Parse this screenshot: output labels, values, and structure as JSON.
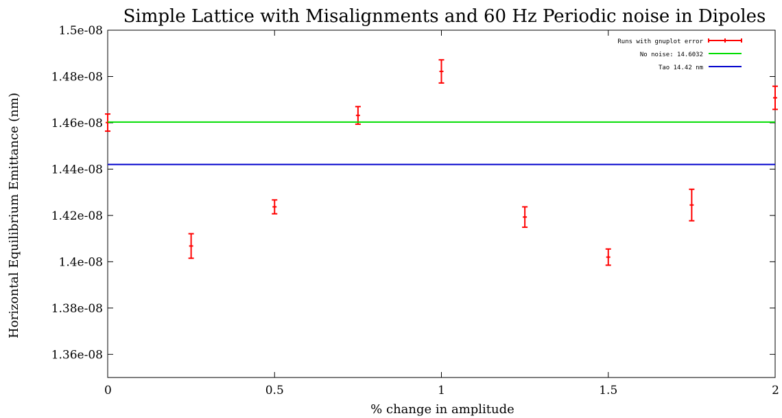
{
  "chart_data": {
    "type": "scatter",
    "title": "Simple Lattice with Misalignments and 60 Hz Periodic noise in Dipoles",
    "xlabel": "% change in amplitude",
    "ylabel": "Horizontal Equilibrium Emittance (nm)",
    "xlim": [
      0,
      2
    ],
    "ylim": [
      1.35e-08,
      1.5e-08
    ],
    "x_ticks": [
      0,
      0.5,
      1,
      1.5,
      2
    ],
    "x_tick_labels": [
      "0",
      "0.5",
      "1",
      "1.5",
      "2"
    ],
    "y_ticks": [
      1.36e-08,
      1.38e-08,
      1.4e-08,
      1.42e-08,
      1.44e-08,
      1.46e-08,
      1.48e-08,
      1.5e-08
    ],
    "y_tick_labels": [
      "1.36e-08",
      "1.38e-08",
      "1.4e-08",
      "1.42e-08",
      "1.44e-08",
      "1.46e-08",
      "1.48e-08",
      "1.5e-08"
    ],
    "grid": false,
    "legend_position": "top-right",
    "series": [
      {
        "name": "Runs with gnuplot error",
        "kind": "errorbars",
        "color": "#ff0000",
        "points": [
          {
            "x": 0,
            "y": 1.4601e-08,
            "err": 3.7e-11
          },
          {
            "x": 0.25,
            "y": 1.4068e-08,
            "err": 5.3e-11
          },
          {
            "x": 0.5,
            "y": 1.4237e-08,
            "err": 3e-11
          },
          {
            "x": 0.75,
            "y": 1.4632e-08,
            "err": 3.8e-11
          },
          {
            "x": 1,
            "y": 1.4822e-08,
            "err": 5e-11
          },
          {
            "x": 1.25,
            "y": 1.4193e-08,
            "err": 4.4e-11
          },
          {
            "x": 1.5,
            "y": 1.402e-08,
            "err": 3.5e-11
          },
          {
            "x": 1.75,
            "y": 1.4245e-08,
            "err": 6.8e-11
          },
          {
            "x": 2,
            "y": 1.4708e-08,
            "err": 5e-11
          }
        ]
      },
      {
        "name": "No noise: 14.6032",
        "kind": "hline",
        "color": "#00dd00",
        "y": 1.46032e-08
      },
      {
        "name": "Tao 14.42 nm",
        "kind": "hline",
        "color": "#0000cc",
        "y": 1.442e-08
      }
    ]
  }
}
